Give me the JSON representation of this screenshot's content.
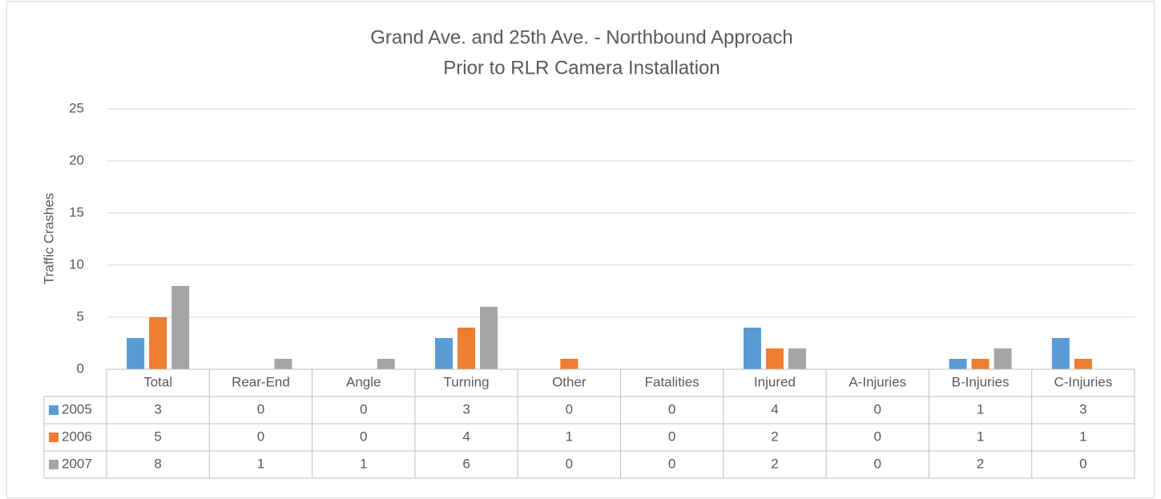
{
  "chart_data": {
    "type": "bar",
    "title": "Grand Ave. and 25th Ave. - Northbound Approach",
    "subtitle": "Prior to RLR Camera Installation",
    "y_label": "Traffic Crashes",
    "categories": [
      "Total",
      "Rear-End",
      "Angle",
      "Turning",
      "Other",
      "Fatalities",
      "Injured",
      "A-Injuries",
      "B-Injuries",
      "C-Injuries"
    ],
    "series": [
      {
        "name": "2005",
        "color": "#5b9bd5",
        "values": [
          3,
          0,
          0,
          3,
          0,
          0,
          4,
          0,
          1,
          3
        ]
      },
      {
        "name": "2006",
        "color": "#ed7d31",
        "values": [
          5,
          0,
          0,
          4,
          1,
          0,
          2,
          0,
          1,
          1
        ]
      },
      {
        "name": "2007",
        "color": "#a5a5a5",
        "values": [
          8,
          1,
          1,
          6,
          0,
          0,
          2,
          0,
          2,
          0
        ]
      }
    ],
    "ylim": [
      0,
      25
    ],
    "yticks": [
      0,
      5,
      10,
      15,
      20,
      25
    ],
    "grid": true,
    "data_table": true
  }
}
